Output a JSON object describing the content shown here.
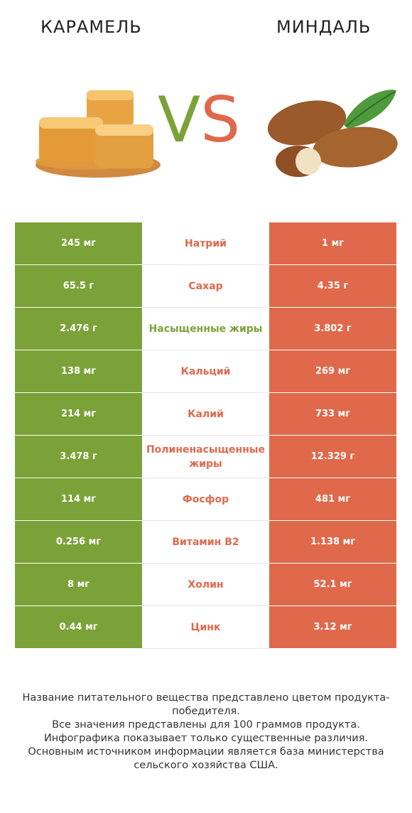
{
  "header": {
    "left_title": "КАРАМЕЛЬ",
    "right_title": "МИНДАЛЬ",
    "vs_v": "V",
    "vs_s": "S"
  },
  "images": {
    "left": "caramel-image",
    "right": "almond-image"
  },
  "colors": {
    "left_accent": "#7ba238",
    "right_accent": "#e0694b"
  },
  "rows": [
    {
      "left": "245 мг",
      "name": "Натрий",
      "right": "1 мг",
      "winner": "right"
    },
    {
      "left": "65.5 г",
      "name": "Сахар",
      "right": "4.35 г",
      "winner": "right"
    },
    {
      "left": "2.476 г",
      "name": "Насыщенные жиры",
      "right": "3.802 г",
      "winner": "left"
    },
    {
      "left": "138 мг",
      "name": "Кальций",
      "right": "269 мг",
      "winner": "right"
    },
    {
      "left": "214 мг",
      "name": "Калий",
      "right": "733 мг",
      "winner": "right"
    },
    {
      "left": "3.478 г",
      "name": "Полиненасыщенные жиры",
      "right": "12.329 г",
      "winner": "right"
    },
    {
      "left": "114 мг",
      "name": "Фосфор",
      "right": "481 мг",
      "winner": "right"
    },
    {
      "left": "0.256 мг",
      "name": "Витамин B2",
      "right": "1.138 мг",
      "winner": "right"
    },
    {
      "left": "8 мг",
      "name": "Холин",
      "right": "52.1 мг",
      "winner": "right"
    },
    {
      "left": "0.44 мг",
      "name": "Цинк",
      "right": "3.12 мг",
      "winner": "right"
    }
  ],
  "footer": {
    "line1": "Название питательного вещества представлено цветом продукта-победителя.",
    "line2": "Все значения представлены для 100 граммов продукта.",
    "line3": "Инфографика показывает только существенные различия.",
    "line4": "Основным источником информации является база министерства сельского хозяйства США."
  }
}
